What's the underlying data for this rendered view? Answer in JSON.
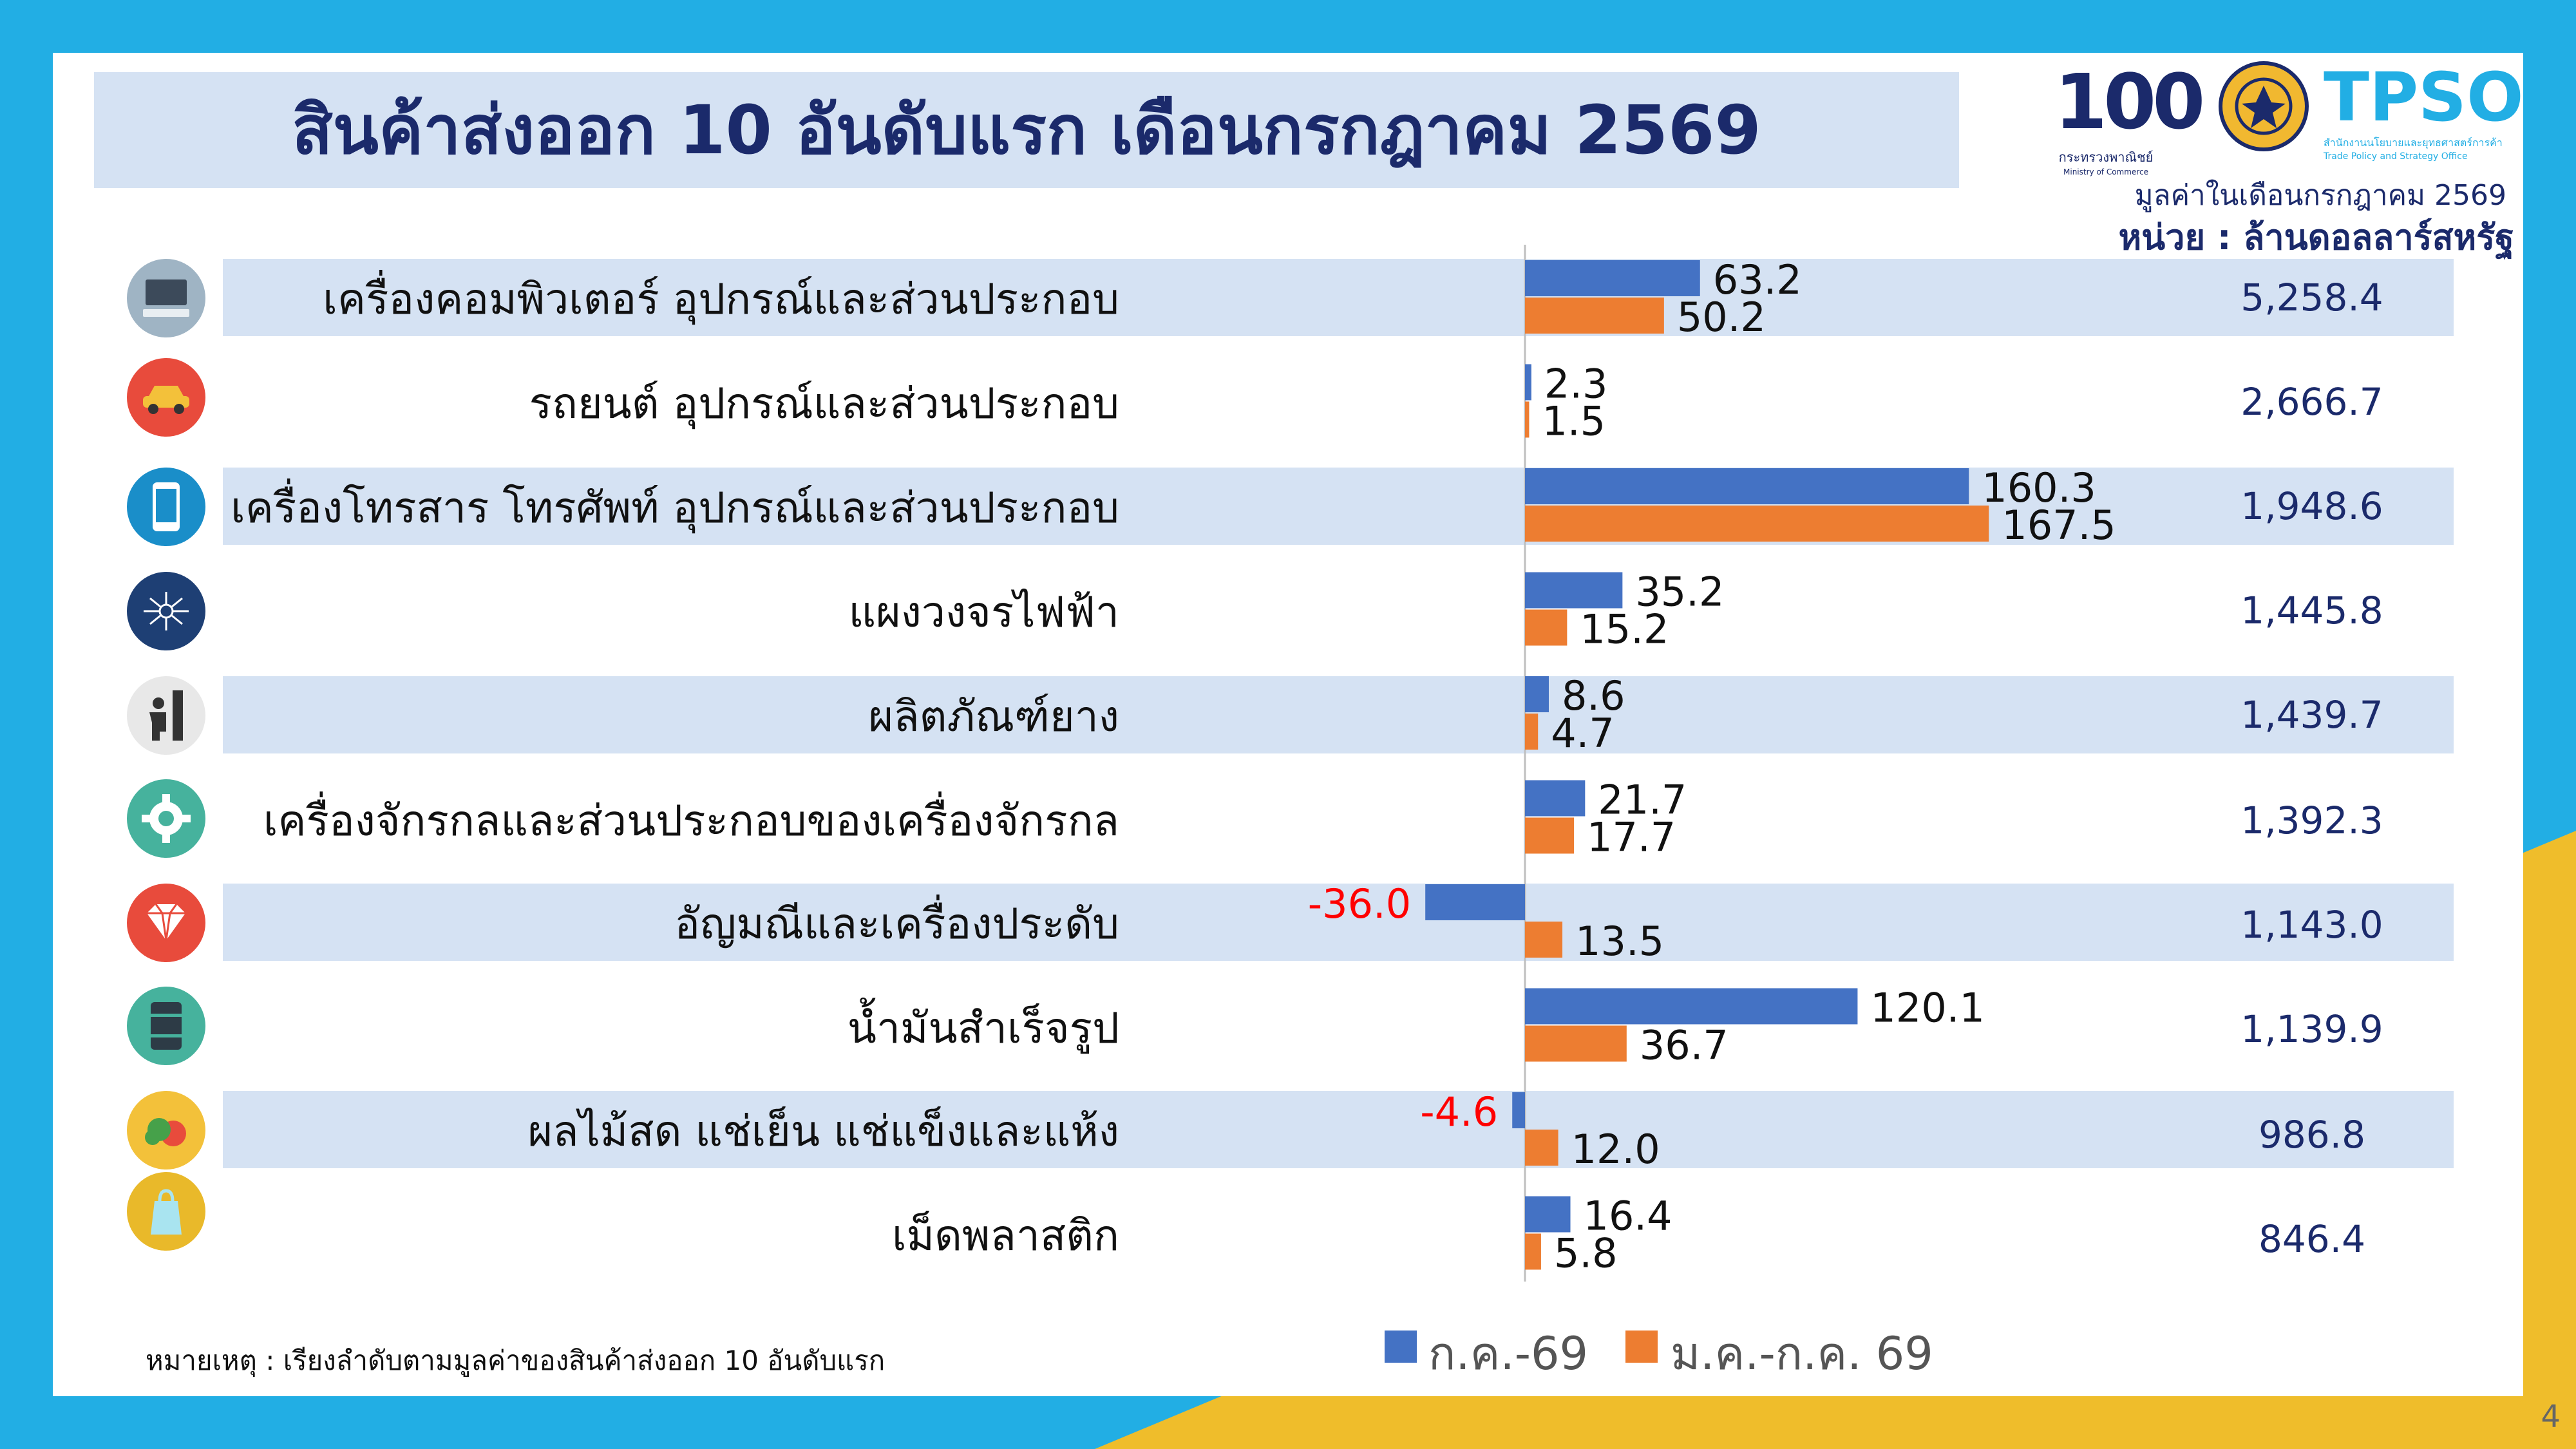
{
  "title": "สินค้าส่งออก 10 อันดับแรก เดือนกรกฎาคม 2569",
  "unit_month": "มูลค่าในเดือนกรกฎาคม 2569",
  "unit_label": "หน่วย : ล้านดอลลาร์สหรัฐ",
  "note": "หมายเหตุ : เรียงลำดับตามมูลค่าของสินค้าส่งออก 10 อันดับแรก",
  "page_number": "4",
  "logos": {
    "ministry_100": "100",
    "ministry_caption": "กระทรวงพาณิชย์",
    "ministry_caption_en": "Ministry of Commerce",
    "tpso": "TPSO",
    "tpso_caption": "สำนักงานนโยบายและยุทธศาสตร์การค้า",
    "tpso_caption_en": "Trade Policy and Strategy Office"
  },
  "icons": [
    "computer-icon",
    "car-icon",
    "phone-icon",
    "circuit-icon",
    "rubber-icon",
    "gear-icon",
    "gem-icon",
    "oil-barrel-icon",
    "fruit-icon",
    "plastic-bag-icon"
  ],
  "chart_data": {
    "type": "bar",
    "orientation": "horizontal",
    "categories": [
      "เครื่องคอมพิวเตอร์ อุปกรณ์และส่วนประกอบ",
      "รถยนต์ อุปกรณ์และส่วนประกอบ",
      "เครื่องโทรสาร โทรศัพท์ อุปกรณ์และส่วนประกอบ",
      "แผงวงจรไฟฟ้า",
      "ผลิตภัณฑ์ยาง",
      "เครื่องจักรกลและส่วนประกอบของเครื่องจักรกล",
      "อัญมณีและเครื่องประดับ",
      "น้ำมันสำเร็จรูป",
      "ผลไม้สด แช่เย็น แช่แข็งและแห้ง",
      "เม็ดพลาสติก"
    ],
    "series": [
      {
        "name": "ก.ค.-69",
        "color": "#4472c4",
        "values": [
          63.2,
          2.3,
          160.3,
          35.2,
          8.6,
          21.7,
          -36.0,
          120.1,
          -4.6,
          16.4
        ],
        "labels": [
          "63.2",
          "2.3",
          "160.3",
          "35.2",
          "8.6",
          "21.7",
          "-36.0",
          "120.1",
          "-4.6",
          "16.4"
        ]
      },
      {
        "name": "ม.ค.-ก.ค. 69",
        "color": "#ed7d31",
        "values": [
          50.2,
          1.5,
          167.5,
          15.2,
          4.7,
          17.7,
          13.5,
          36.7,
          12.0,
          5.8
        ],
        "labels": [
          "50.2",
          "1.5",
          "167.5",
          "15.2",
          "4.7",
          "17.7",
          "13.5",
          "36.7",
          "12.0",
          "5.8"
        ]
      }
    ],
    "totals": [
      "5,258.4",
      "2,666.7",
      "1,948.6",
      "1,445.8",
      "1,439.7",
      "1,392.3",
      "1,143.0",
      "1,139.9",
      "986.8",
      "846.4"
    ],
    "negative_label_color": "#ff0000",
    "legend": "bottom"
  }
}
